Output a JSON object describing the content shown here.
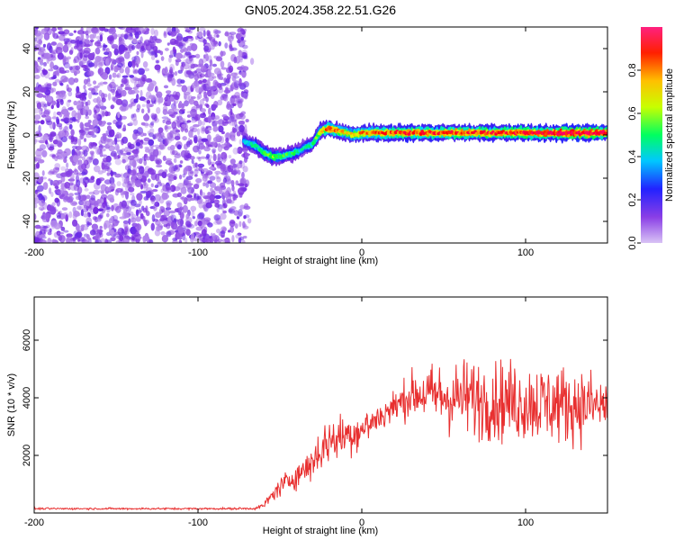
{
  "figure_title": "GN05.2024.358.22.51.G26",
  "chart_data": [
    {
      "type": "heatmap",
      "title": "",
      "xlabel": "Height of straight line (km)",
      "ylabel": "Frequency (Hz)",
      "xlim": [
        -200,
        150
      ],
      "ylim": [
        -50,
        50
      ],
      "xticks": [
        -200,
        -100,
        0,
        100
      ],
      "yticks": [
        -40,
        -20,
        0,
        20,
        40
      ],
      "colorbar": {
        "label": "Normalized spectral amplitude",
        "range": [
          0,
          1
        ],
        "ticks": [
          0.0,
          0.2,
          0.4,
          0.6,
          0.8
        ],
        "colormap": [
          "#c8a8f0",
          "#7a2be0",
          "#2020ff",
          "#00d8ff",
          "#00ff40",
          "#d8ff00",
          "#ffa000",
          "#ff0000",
          "#ff0060"
        ]
      },
      "regions": [
        {
          "x_range": [
            -200,
            -70
          ],
          "frequency_range": [
            -50,
            50
          ],
          "amplitude": 0.1,
          "pattern": "broadband noise"
        }
      ],
      "ridge": {
        "x": [
          -72,
          -65,
          -60,
          -55,
          -50,
          -45,
          -40,
          -35,
          -30,
          -25,
          -20,
          -15,
          -10,
          -5,
          0,
          10,
          25,
          50,
          75,
          100,
          125,
          150
        ],
        "frequency": [
          -3,
          -5,
          -8,
          -10,
          -10,
          -9,
          -8,
          -6,
          -4,
          2,
          3,
          2,
          1,
          0,
          1,
          1,
          1,
          1,
          1,
          1,
          1,
          1
        ],
        "amplitude": [
          0.35,
          0.45,
          0.5,
          0.55,
          0.5,
          0.5,
          0.45,
          0.4,
          0.45,
          0.65,
          0.8,
          0.75,
          0.7,
          0.7,
          0.75,
          0.8,
          0.85,
          0.85,
          0.85,
          0.9,
          0.95,
          0.95
        ]
      }
    },
    {
      "type": "line",
      "title": "",
      "xlabel": "Height of straight line (km)",
      "ylabel": "SNR (10 * v/v)",
      "xlim": [
        -200,
        150
      ],
      "ylim": [
        0,
        7500
      ],
      "xticks": [
        -200,
        -100,
        0,
        100
      ],
      "yticks": [
        2000,
        4000,
        6000
      ],
      "color": "#e83030",
      "series": [
        {
          "x": [
            -200,
            -180,
            -160,
            -140,
            -120,
            -100,
            -80,
            -65,
            -60,
            -55,
            -50,
            -45,
            -40,
            -35,
            -30,
            -25,
            -20,
            -15,
            -10,
            -5,
            0,
            5,
            10,
            15,
            20,
            25,
            30,
            35,
            40,
            45,
            50,
            55,
            60,
            65,
            70,
            75,
            80,
            85,
            90,
            95,
            100,
            105,
            110,
            115,
            120,
            125,
            130,
            135,
            140,
            145,
            150
          ],
          "y": [
            150,
            150,
            150,
            150,
            150,
            150,
            150,
            160,
            250,
            600,
            900,
            1100,
            1300,
            1500,
            1800,
            2200,
            2500,
            2600,
            2700,
            2800,
            2900,
            3100,
            3300,
            3500,
            3700,
            3900,
            4100,
            4150,
            4100,
            4100,
            4050,
            4000,
            4000,
            4000,
            3950,
            3950,
            3900,
            3900,
            3900,
            3850,
            3850,
            3850,
            3800,
            3800,
            3800,
            3750,
            3750,
            3750,
            3750,
            3700,
            3700
          ],
          "spread": [
            60,
            60,
            60,
            60,
            60,
            60,
            60,
            80,
            200,
            400,
            600,
            700,
            800,
            1000,
            1200,
            1400,
            1500,
            1400,
            1400,
            1300,
            1200,
            1100,
            1000,
            1000,
            1100,
            1200,
            1400,
            1600,
            1800,
            2000,
            2200,
            2300,
            2400,
            2500,
            2500,
            2500,
            2500,
            2500,
            2500,
            2500,
            2500,
            2500,
            2500,
            2500,
            2500,
            2400,
            2300,
            2300,
            2200,
            2000,
            2000
          ]
        }
      ]
    }
  ]
}
